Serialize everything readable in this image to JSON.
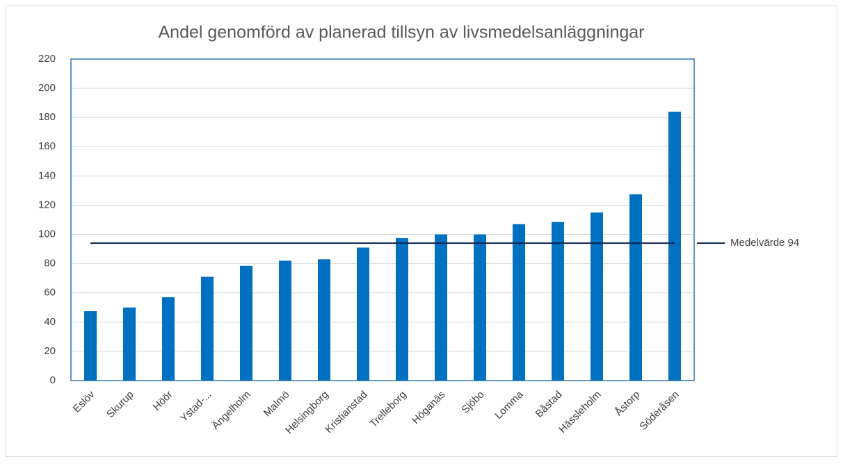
{
  "chart_data": {
    "type": "bar",
    "title": "Andel genomförd av planerad tillsyn av livsmedelsanläggningar",
    "categories": [
      "Eslöv",
      "Skurup",
      "Höör",
      "Ystad-...",
      "Ängelholm",
      "Malmö",
      "Helsingborg",
      "Kristianstad",
      "Trelleborg",
      "Höganäs",
      "Sjöbo",
      "Lomma",
      "Båstad",
      "Hässleholm",
      "Åstorp",
      "Söderåsen"
    ],
    "values": [
      47.5,
      50,
      57,
      71,
      78.5,
      82,
      83,
      91,
      97.5,
      100,
      100,
      107,
      108.5,
      115,
      127.5,
      184
    ],
    "color": "#0070c0",
    "ylim": [
      0,
      220
    ],
    "yticks": [
      0,
      20,
      40,
      60,
      80,
      100,
      120,
      140,
      160,
      180,
      200,
      220
    ],
    "grid": true,
    "mean_line": {
      "value": 94,
      "label": "Medelvärde 94",
      "color": "#0b1f4d"
    }
  }
}
